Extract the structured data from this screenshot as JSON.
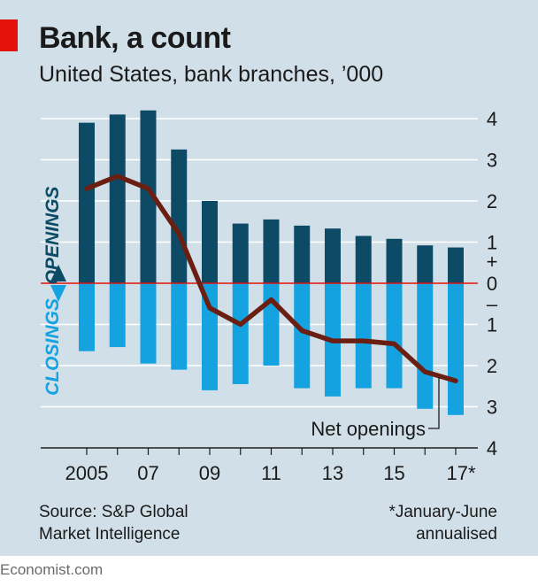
{
  "header": {
    "title": "Bank, a count",
    "subtitle": "United States, bank branches, ’000"
  },
  "colors": {
    "openings": "#0c4a66",
    "closings": "#14a3e0",
    "net_line": "#6b1f12",
    "zero_line": "#e3120b",
    "background": "#d0dfe8",
    "accent": "#e3120b"
  },
  "side_labels": {
    "openings": "OPENINGS",
    "closings": "CLOSINGS"
  },
  "annotation": {
    "net_openings": "Net openings"
  },
  "footer": {
    "source_line1": "Source: S&P Global",
    "source_line2": "Market Intelligence",
    "note_line1": "*January-June",
    "note_line2": "annualised",
    "brand": "Economist.com"
  },
  "chart_data": {
    "type": "bar",
    "x": [
      2005,
      2006,
      2007,
      2008,
      2009,
      2010,
      2011,
      2012,
      2013,
      2014,
      2015,
      2016,
      2017
    ],
    "x_tick_labels": [
      "2005",
      "07",
      "09",
      "11",
      "13",
      "15",
      "17*"
    ],
    "x_tick_years": [
      2005,
      2007,
      2009,
      2011,
      2013,
      2015,
      2017
    ],
    "y_tick_values": [
      4,
      3,
      2,
      1,
      0,
      1,
      2,
      3,
      4
    ],
    "y_tick_positions": [
      4,
      3,
      2,
      1,
      0,
      -1,
      -2,
      -3,
      -4
    ],
    "y_plus_sign": "+",
    "y_minus_sign": "–",
    "ylim": [
      -4,
      4
    ],
    "grid": true,
    "series": [
      {
        "name": "Openings",
        "kind": "bar",
        "values": [
          3.9,
          4.1,
          4.2,
          3.25,
          2.0,
          1.45,
          1.55,
          1.4,
          1.33,
          1.15,
          1.08,
          0.92,
          0.87
        ]
      },
      {
        "name": "Closings",
        "kind": "bar",
        "values": [
          -1.65,
          -1.55,
          -1.95,
          -2.1,
          -2.6,
          -2.45,
          -2.0,
          -2.55,
          -2.75,
          -2.55,
          -2.55,
          -3.05,
          -3.2
        ]
      },
      {
        "name": "Net openings",
        "kind": "line",
        "values": [
          2.3,
          2.6,
          2.3,
          1.2,
          -0.6,
          -1.0,
          -0.4,
          -1.15,
          -1.4,
          -1.4,
          -1.47,
          -2.15,
          -2.37
        ]
      }
    ]
  }
}
